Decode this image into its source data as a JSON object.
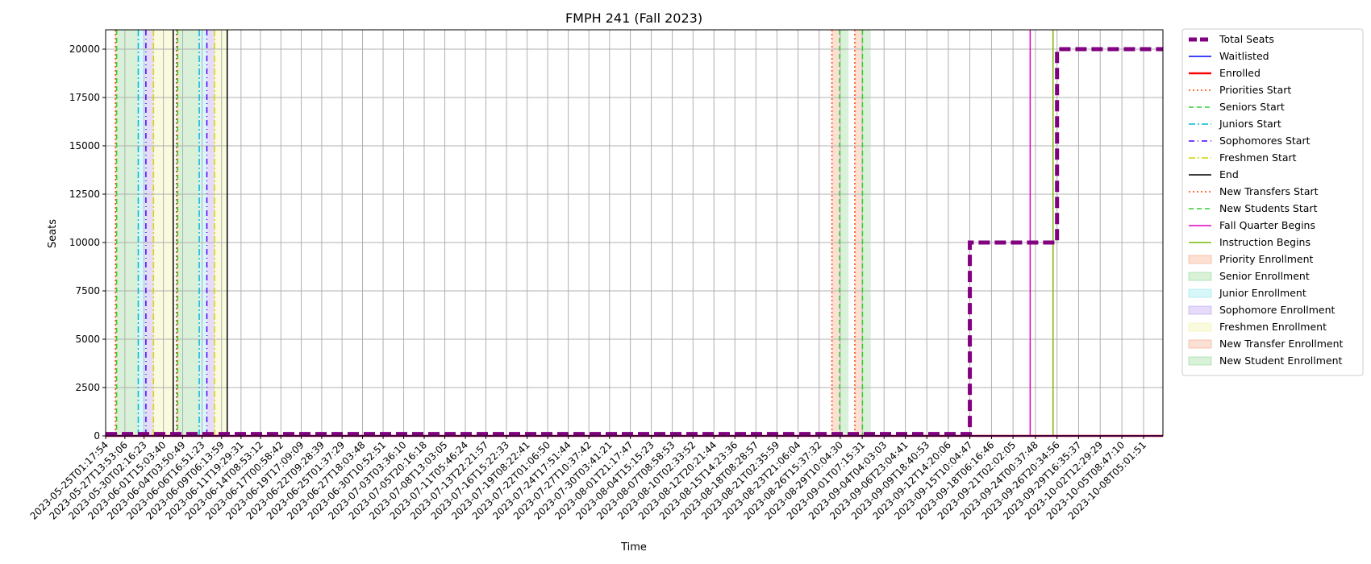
{
  "chart_data": {
    "type": "line",
    "title": "FMPH 241 (Fall 2023)",
    "xlabel": "Time",
    "ylabel": "Seats",
    "ylim": [
      0,
      21000
    ],
    "yticks": [
      0,
      2500,
      5000,
      7500,
      10000,
      12500,
      15000,
      17500,
      20000
    ],
    "x_range": [
      "2023-05-25T01:17:54",
      "2023-10-10T18:00:00"
    ],
    "xticks": [
      "2023-05-25T01:17:54",
      "2023-05-27T13:53:06",
      "2023-05-30T02:16:23",
      "2023-06-01T15:03:40",
      "2023-06-04T03:50:49",
      "2023-06-06T16:51:23",
      "2023-06-09T06:13:59",
      "2023-06-11T19:29:31",
      "2023-06-14T08:53:12",
      "2023-06-17T00:58:42",
      "2023-06-19T17:09:09",
      "2023-06-22T09:28:39",
      "2023-06-25T01:37:29",
      "2023-06-27T18:03:48",
      "2023-06-30T10:52:51",
      "2023-07-03T03:36:10",
      "2023-07-05T20:16:18",
      "2023-07-08T13:03:05",
      "2023-07-11T05:46:24",
      "2023-07-13T22:21:57",
      "2023-07-16T15:22:33",
      "2023-07-19T08:22:41",
      "2023-07-22T01:06:50",
      "2023-07-24T17:51:44",
      "2023-07-27T10:37:42",
      "2023-07-30T03:41:21",
      "2023-08-01T21:17:47",
      "2023-08-04T15:15:23",
      "2023-08-07T08:58:53",
      "2023-08-10T02:33:52",
      "2023-08-12T20:21:44",
      "2023-08-15T14:23:36",
      "2023-08-18T08:28:57",
      "2023-08-21T02:35:59",
      "2023-08-23T21:06:04",
      "2023-08-26T15:37:32",
      "2023-08-29T10:04:30",
      "2023-09-01T07:15:31",
      "2023-09-04T04:03:03",
      "2023-09-06T23:04:41",
      "2023-09-09T18:40:53",
      "2023-09-12T14:20:06",
      "2023-09-15T10:04:47",
      "2023-09-18T06:16:46",
      "2023-09-21T02:02:05",
      "2023-09-24T00:37:48",
      "2023-09-26T20:34:56",
      "2023-09-29T16:35:37",
      "2023-10-02T12:29:29",
      "2023-10-05T08:47:10",
      "2023-10-08T05:01:51"
    ],
    "grid": true,
    "legend_position": "outside-right",
    "series": [
      {
        "name": "Total Seats",
        "color": "#800080",
        "style": "dashed-thick",
        "points": [
          [
            "2023-05-25T01:17:54",
            100
          ],
          [
            "2023-09-15T10:04:47",
            100
          ],
          [
            "2023-09-15T10:04:47",
            10000
          ],
          [
            "2023-09-26T20:34:56",
            10000
          ],
          [
            "2023-09-26T20:34:56",
            20000
          ],
          [
            "2023-10-10T18:00:00",
            20000
          ]
        ]
      },
      {
        "name": "Waitlisted",
        "color": "#0000ff",
        "style": "solid",
        "points": [
          [
            "2023-05-25T01:17:54",
            0
          ],
          [
            "2023-10-10T18:00:00",
            0
          ]
        ]
      },
      {
        "name": "Enrolled",
        "color": "#ff0000",
        "style": "solid-thick",
        "points": [
          [
            "2023-05-25T01:17:54",
            0
          ],
          [
            "2023-10-10T18:00:00",
            0
          ]
        ]
      }
    ],
    "event_lines": [
      {
        "name": "Priorities Start",
        "color": "#ff4500",
        "style": "dotted",
        "times": [
          "2023-05-26T08:00:00",
          "2023-06-03T08:00:00"
        ]
      },
      {
        "name": "Seniors Start",
        "color": "#32cd32",
        "style": "dashed",
        "times": [
          "2023-05-26T12:00:00",
          "2023-06-03T12:00:00"
        ]
      },
      {
        "name": "Juniors Start",
        "color": "#00bcd4",
        "style": "dashdot",
        "times": [
          "2023-05-29T08:00:00",
          "2023-06-06T08:00:00"
        ]
      },
      {
        "name": "Sophomores Start",
        "color": "#4b00ff",
        "style": "dashdotted-dense",
        "times": [
          "2023-05-30T08:00:00",
          "2023-06-07T08:00:00"
        ]
      },
      {
        "name": "Freshmen Start",
        "color": "#d4d400",
        "style": "dashdot",
        "times": [
          "2023-05-31T08:00:00",
          "2023-06-08T08:00:00"
        ]
      },
      {
        "name": "End",
        "color": "#000000",
        "style": "solid",
        "times": [
          "2023-06-02T22:00:00",
          "2023-06-10T00:00:00"
        ]
      },
      {
        "name": "New Transfers Start",
        "color": "#ff4500",
        "style": "dotted",
        "times": [
          "2023-08-28T08:00:00",
          "2023-08-31T08:00:00"
        ]
      },
      {
        "name": "New Students Start",
        "color": "#32cd32",
        "style": "dashed",
        "times": [
          "2023-08-29T08:00:00",
          "2023-09-01T08:00:00"
        ]
      },
      {
        "name": "Fall Quarter Begins",
        "color": "#e000c0",
        "style": "solid",
        "times": [
          "2023-09-23T08:00:00"
        ]
      },
      {
        "name": "Instruction Begins",
        "color": "#7cb800",
        "style": "solid",
        "times": [
          "2023-09-26T08:00:00"
        ]
      }
    ],
    "spans": [
      {
        "name": "Priority Enrollment",
        "color": "#f4a582",
        "ranges": [
          [
            "2023-05-26T08:00:00",
            "2023-05-26T12:00:00"
          ],
          [
            "2023-06-03T08:00:00",
            "2023-06-03T12:00:00"
          ]
        ]
      },
      {
        "name": "Senior Enrollment",
        "color": "#8fd88f",
        "ranges": [
          [
            "2023-05-26T12:00:00",
            "2023-05-29T08:00:00"
          ],
          [
            "2023-06-03T12:00:00",
            "2023-06-06T08:00:00"
          ]
        ]
      },
      {
        "name": "Junior Enrollment",
        "color": "#8fe8f0",
        "ranges": [
          [
            "2023-05-29T08:00:00",
            "2023-05-30T08:00:00"
          ],
          [
            "2023-06-06T08:00:00",
            "2023-06-07T08:00:00"
          ]
        ]
      },
      {
        "name": "Sophomore Enrollment",
        "color": "#b89cf0",
        "ranges": [
          [
            "2023-05-30T08:00:00",
            "2023-05-31T08:00:00"
          ],
          [
            "2023-06-07T08:00:00",
            "2023-06-08T08:00:00"
          ]
        ]
      },
      {
        "name": "Freshmen Enrollment",
        "color": "#f2f2a0",
        "ranges": [
          [
            "2023-05-31T08:00:00",
            "2023-06-02T22:00:00"
          ],
          [
            "2023-06-08T08:00:00",
            "2023-06-10T00:00:00"
          ]
        ]
      },
      {
        "name": "New Transfer Enrollment",
        "color": "#f4a582",
        "ranges": [
          [
            "2023-08-28T08:00:00",
            "2023-08-29T08:00:00"
          ],
          [
            "2023-08-31T08:00:00",
            "2023-09-01T08:00:00"
          ]
        ]
      },
      {
        "name": "New Student Enrollment",
        "color": "#8fd88f",
        "ranges": [
          [
            "2023-08-29T08:00:00",
            "2023-08-30T12:00:00"
          ],
          [
            "2023-09-01T08:00:00",
            "2023-09-02T10:00:00"
          ]
        ]
      }
    ]
  }
}
